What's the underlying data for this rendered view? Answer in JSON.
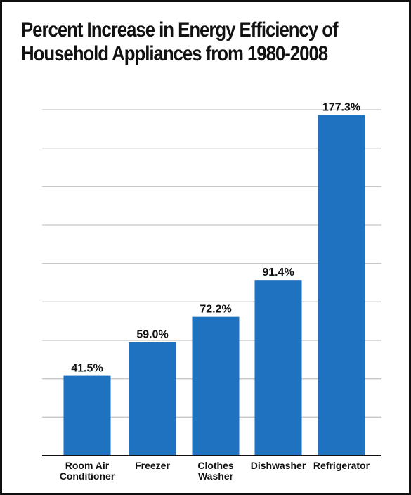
{
  "chart_data": {
    "type": "bar",
    "title_lines": [
      "Percent Increase in Energy Efficiency of",
      "Household Appliances from 1980-2008"
    ],
    "categories": [
      "Room Air Conditioner",
      "Freezer",
      "Clothes Washer",
      "Dishwasher",
      "Refrigerator"
    ],
    "category_lines": [
      [
        "Room Air",
        "Conditioner"
      ],
      [
        "Freezer"
      ],
      [
        "Clothes",
        "Washer"
      ],
      [
        "Dishwasher"
      ],
      [
        "Refrigerator"
      ]
    ],
    "values": [
      41.5,
      59.0,
      72.2,
      91.4,
      177.3
    ],
    "value_labels": [
      "41.5%",
      "59.0%",
      "72.2%",
      "91.4%",
      "177.3%"
    ],
    "ylim": [
      0,
      180
    ],
    "grid": true,
    "xlabel": "",
    "ylabel": "",
    "colors": {
      "bar": "#1f72c0",
      "grid": "#c8c8c8",
      "axis": "#111111",
      "text": "#111111"
    }
  }
}
